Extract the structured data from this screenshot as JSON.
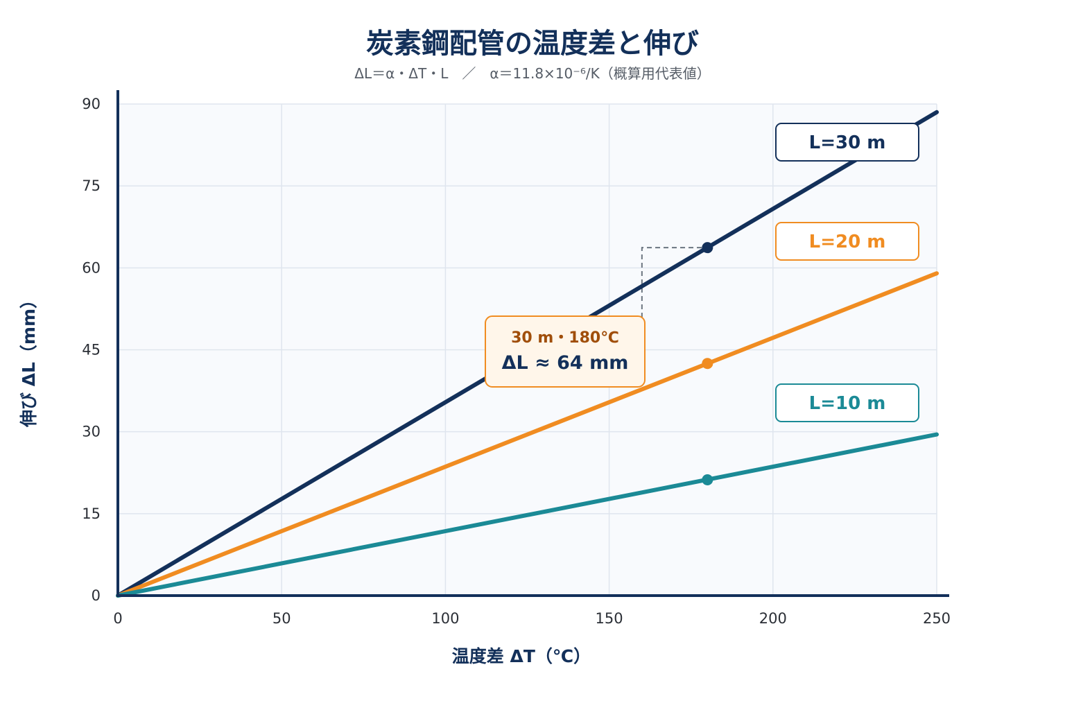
{
  "chart_data": {
    "type": "line",
    "title": "炭素鋼配管の温度差と伸び",
    "subtitle": "ΔL＝α・ΔT・L　／　α＝11.8×10⁻⁶/K（概算用代表値）",
    "xlabel": "温度差 ΔT（℃）",
    "ylabel": "伸び ΔL（mm）",
    "xlim": [
      0,
      250
    ],
    "ylim": [
      0,
      90
    ],
    "xticks": [
      0,
      50,
      100,
      150,
      200,
      250
    ],
    "yticks": [
      0,
      15,
      30,
      45,
      60,
      75,
      90
    ],
    "grid": true,
    "series": [
      {
        "name": "L=30 m",
        "color": "#13305a",
        "x": [
          0,
          250
        ],
        "y": [
          0,
          88.5
        ],
        "marker": {
          "x": 180,
          "y": 63.7
        }
      },
      {
        "name": "L=20 m",
        "color": "#f08c21",
        "x": [
          0,
          250
        ],
        "y": [
          0,
          59.0
        ],
        "marker": {
          "x": 180,
          "y": 42.5
        }
      },
      {
        "name": "L=10 m",
        "color": "#1b8a96",
        "x": [
          0,
          250
        ],
        "y": [
          0,
          29.5
        ],
        "marker": {
          "x": 180,
          "y": 21.2
        }
      }
    ],
    "annotation": {
      "line1": "30 m・180℃",
      "line2": "ΔL ≈ 64 mm",
      "guide": {
        "x": 160,
        "y": 63.7
      }
    }
  }
}
